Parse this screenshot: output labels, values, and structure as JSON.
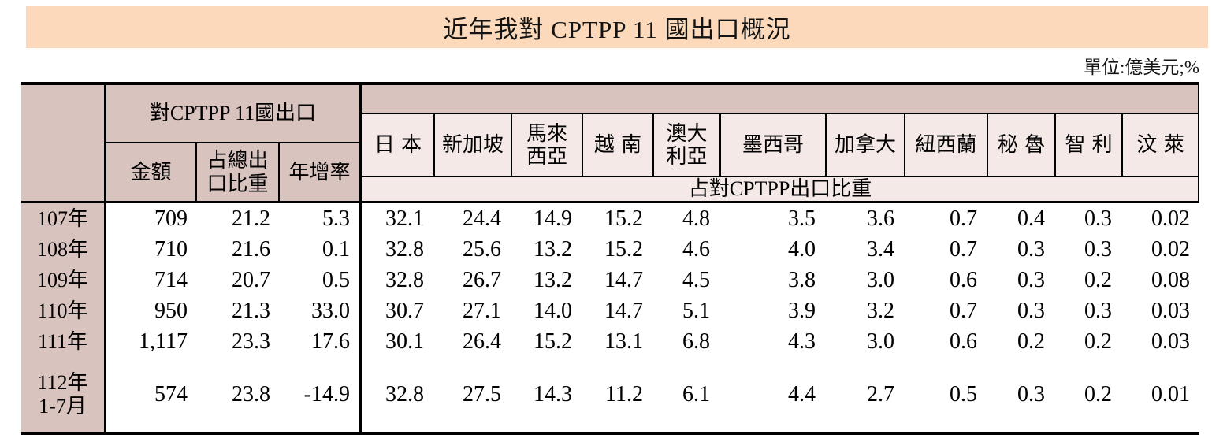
{
  "page": {
    "title": "近年我對 CPTPP 11 國出口概況",
    "unit_note": "單位:億美元;%"
  },
  "colors": {
    "title_bg": "#fbd9ba",
    "header_dark_bg": "#d9c3be",
    "header_light_bg": "#f4e9e7",
    "border": "#000000",
    "text": "#141414"
  },
  "table": {
    "group_header": "對CPTPP 11國出口",
    "sub_headers": [
      "金額",
      "占總出\n口比重",
      "年增率"
    ],
    "countries": [
      "日本",
      "新加坡",
      "馬來\n西亞",
      "越南",
      "澳大\n利亞",
      "墨西哥",
      "加拿大",
      "紐西蘭",
      "秘魯",
      "智利",
      "汶萊"
    ],
    "share_band_label": "占對CPTPP出口比重",
    "rows": [
      {
        "year": "107年",
        "amount": "709",
        "share_of_total": "21.2",
        "yoy": "5.3",
        "country_shares": [
          "32.1",
          "24.4",
          "14.9",
          "15.2",
          "4.8",
          "3.5",
          "3.6",
          "0.7",
          "0.4",
          "0.3",
          "0.02"
        ]
      },
      {
        "year": "108年",
        "amount": "710",
        "share_of_total": "21.6",
        "yoy": "0.1",
        "country_shares": [
          "32.8",
          "25.6",
          "13.2",
          "15.2",
          "4.6",
          "4.0",
          "3.4",
          "0.7",
          "0.3",
          "0.3",
          "0.02"
        ]
      },
      {
        "year": "109年",
        "amount": "714",
        "share_of_total": "20.7",
        "yoy": "0.5",
        "country_shares": [
          "32.8",
          "26.7",
          "13.2",
          "14.7",
          "4.5",
          "3.8",
          "3.0",
          "0.6",
          "0.3",
          "0.2",
          "0.08"
        ]
      },
      {
        "year": "110年",
        "amount": "950",
        "share_of_total": "21.3",
        "yoy": "33.0",
        "country_shares": [
          "30.7",
          "27.1",
          "14.0",
          "14.7",
          "5.1",
          "3.9",
          "3.2",
          "0.7",
          "0.3",
          "0.3",
          "0.03"
        ]
      },
      {
        "year": "111年",
        "amount": "1,117",
        "share_of_total": "23.3",
        "yoy": "17.6",
        "country_shares": [
          "30.1",
          "26.4",
          "15.2",
          "13.1",
          "6.8",
          "4.3",
          "3.0",
          "0.6",
          "0.2",
          "0.2",
          "0.03"
        ]
      },
      {
        "year": "112年\n1-7月",
        "amount": "574",
        "share_of_total": "23.8",
        "yoy": "-14.9",
        "country_shares": [
          "32.8",
          "27.5",
          "14.3",
          "11.2",
          "6.1",
          "4.4",
          "2.7",
          "0.5",
          "0.3",
          "0.2",
          "0.01"
        ]
      }
    ]
  }
}
